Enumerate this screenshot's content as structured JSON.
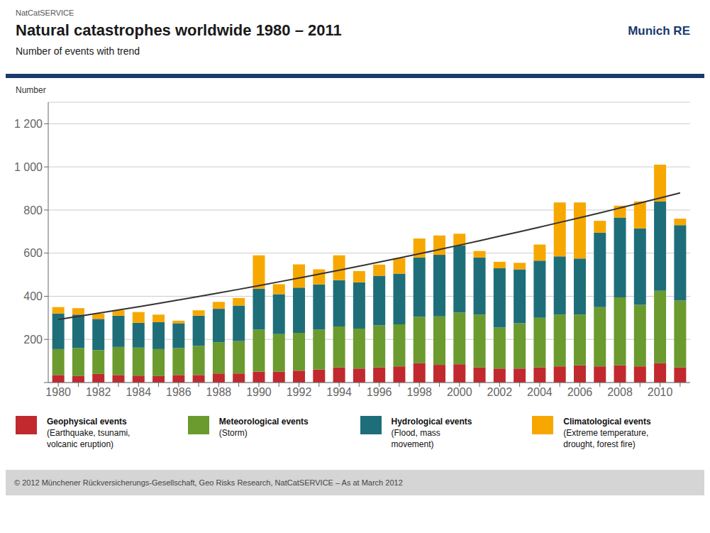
{
  "chart_data": {
    "type": "bar",
    "stacked": true,
    "grid": true,
    "header_label": "NatCatSERVICE",
    "title": "Natural catastrophes worldwide 1980 – 2011",
    "subtitle": "Number of events with trend",
    "brand": "Munich RE",
    "ylabel": "Number",
    "footer": "© 2012 Münchener Rückversicherungs-Gesellschaft, Geo Risks Research, NatCatSERVICE – As at March 2012",
    "categories": [
      "1980",
      null,
      "1982",
      null,
      "1984",
      null,
      "1986",
      null,
      "1988",
      null,
      "1990",
      null,
      "1992",
      null,
      "1994",
      null,
      "1996",
      null,
      "1998",
      null,
      "2000",
      null,
      "2002",
      null,
      "2004",
      null,
      "2006",
      null,
      "2008",
      null,
      "2010",
      null
    ],
    "ylim": [
      0,
      1300
    ],
    "yticks": [
      {
        "value": 0,
        "label": ""
      },
      200,
      400,
      600,
      800,
      {
        "value": 1000,
        "label": "1 000"
      },
      {
        "value": 1200,
        "label": "1 200"
      }
    ],
    "series": [
      {
        "name": "Geophysical events",
        "note_lines": [
          "(Earthquake, tsunami,",
          "volcanic eruption)"
        ],
        "type": "bar",
        "color": "#c1292e",
        "values": [
          35,
          30,
          40,
          35,
          32,
          30,
          35,
          35,
          42,
          42,
          50,
          50,
          55,
          60,
          70,
          65,
          70,
          75,
          90,
          82,
          85,
          70,
          65,
          65,
          70,
          75,
          80,
          75,
          80,
          75,
          90,
          70
        ]
      },
      {
        "name": "Meteorological events",
        "note_lines": [
          "(Storm)"
        ],
        "type": "bar",
        "color": "#6b9a2e",
        "values": [
          120,
          130,
          110,
          130,
          130,
          125,
          125,
          135,
          145,
          150,
          195,
          175,
          175,
          185,
          190,
          185,
          195,
          195,
          215,
          225,
          240,
          245,
          190,
          210,
          230,
          240,
          235,
          275,
          315,
          285,
          335,
          310
        ]
      },
      {
        "name": "Hydrological events",
        "note_lines": [
          "(Flood, mass",
          "movement)"
        ],
        "type": "bar",
        "color": "#1e6e7a",
        "values": [
          165,
          155,
          145,
          145,
          115,
          125,
          115,
          140,
          155,
          165,
          190,
          185,
          210,
          210,
          215,
          215,
          230,
          235,
          275,
          285,
          310,
          265,
          275,
          250,
          265,
          270,
          260,
          345,
          370,
          355,
          415,
          350
        ]
      },
      {
        "name": "Climatological events",
        "note_lines": [
          "(Extreme temperature,",
          "drought, forest fire)"
        ],
        "type": "bar",
        "color": "#f7a800",
        "values": [
          30,
          30,
          25,
          25,
          50,
          35,
          12,
          25,
          32,
          35,
          155,
          46,
          108,
          70,
          115,
          52,
          52,
          72,
          88,
          90,
          55,
          30,
          30,
          30,
          75,
          250,
          260,
          55,
          55,
          125,
          170,
          30
        ]
      },
      {
        "type": "line",
        "color": "#333333",
        "values": [
          292.5,
          306.8,
          321.4,
          336.4,
          351.6,
          367.1,
          383.0,
          399.1,
          415.6,
          432.4,
          449.5,
          466.9,
          484.5,
          502.6,
          520.9,
          539.5,
          558.4,
          577.7,
          597.2,
          617.1,
          637.2,
          657.7,
          678.5,
          699.5,
          720.9,
          742.6,
          764.6,
          786.9,
          809.6,
          832.5,
          855.7,
          879.3
        ]
      }
    ]
  }
}
